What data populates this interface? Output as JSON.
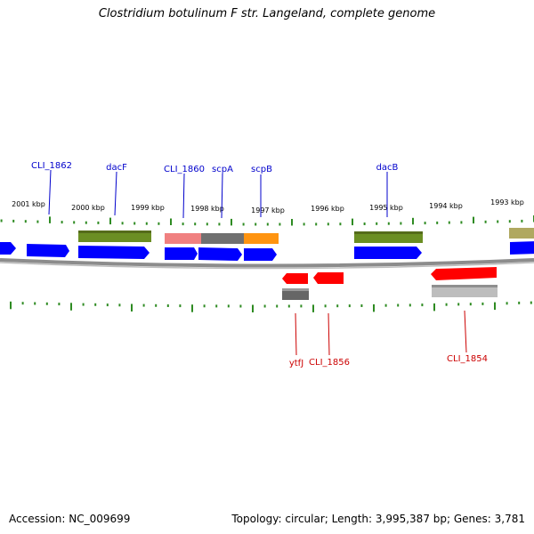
{
  "title": "Clostridium botulinum F str. Langeland, complete genome",
  "footer": {
    "accession": "Accession: NC_009699",
    "topology": "Topology: circular; Length: 3,995,387 bp; Genes: 3,781"
  },
  "colors": {
    "background": "#ffffff",
    "backbone": "#8c8c8c",
    "tick": "#2e8b22",
    "forward_gene": "#0000ff",
    "reverse_gene": "#ff0000",
    "forward_label": "#0000cc",
    "reverse_label": "#cc0000"
  },
  "scale_labels": [
    "2001 kbp",
    "2000 kbp",
    "1999 kbp",
    "1998 kbp",
    "1997 kbp",
    "1996 kbp",
    "1995 kbp",
    "1994 kbp",
    "1993 kbp"
  ],
  "forward_gene_labels": [
    "CLI_1862",
    "dacF",
    "CLI_1860",
    "scpA",
    "scpB",
    "dacB"
  ],
  "reverse_gene_labels": [
    "ytfJ",
    "CLI_1856",
    "CLI_1854"
  ],
  "feature_tracks": {
    "forward_genes": 7,
    "forward_cog": [
      "green",
      "pink",
      "grey",
      "orange",
      "green",
      "khaki"
    ],
    "reverse_genes": 3,
    "reverse_cog": [
      "grey",
      "lightgrey"
    ]
  }
}
